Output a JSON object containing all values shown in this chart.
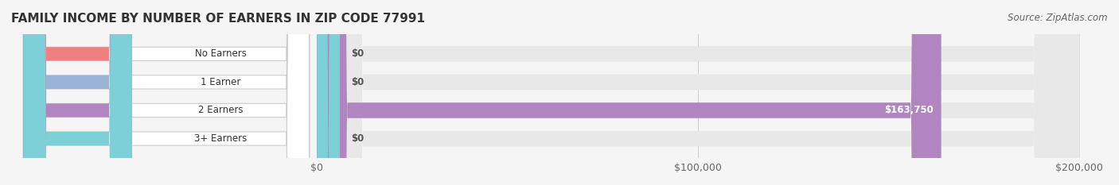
{
  "title": "FAMILY INCOME BY NUMBER OF EARNERS IN ZIP CODE 77991",
  "source": "Source: ZipAtlas.com",
  "categories": [
    "No Earners",
    "1 Earner",
    "2 Earners",
    "3+ Earners"
  ],
  "values": [
    0,
    0,
    163750,
    0
  ],
  "bar_colors": [
    "#f08080",
    "#9ab4d8",
    "#b085c0",
    "#7dd0d8"
  ],
  "label_bg_colors": [
    "#f08080",
    "#9ab4d8",
    "#b085c0",
    "#7dd0d8"
  ],
  "xlim": [
    0,
    200000
  ],
  "xticks": [
    0,
    100000,
    200000
  ],
  "xtick_labels": [
    "$0",
    "$100,000",
    "$200,000"
  ],
  "bar_height": 0.55,
  "background_color": "#f5f5f5",
  "track_color": "#e8e8e8",
  "value_label_color_inside": "#ffffff",
  "value_label_color_outside": "#666666",
  "title_fontsize": 11,
  "source_fontsize": 8.5,
  "bar_label_fontsize": 8.5,
  "tick_fontsize": 9
}
